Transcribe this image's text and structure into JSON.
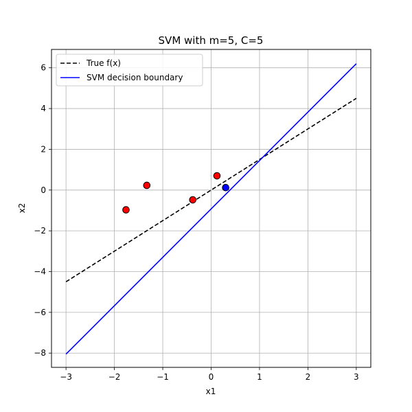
{
  "chart_data": {
    "type": "scatter",
    "title": "SVM with m=5, C=5",
    "xlabel": "x1",
    "ylabel": "x2",
    "xlim": [
      -3.3,
      3.3
    ],
    "ylim": [
      -8.7,
      6.9
    ],
    "xticks": [
      -3,
      -2,
      -1,
      0,
      1,
      2,
      3
    ],
    "yticks": [
      -8,
      -6,
      -4,
      -2,
      0,
      2,
      4,
      6
    ],
    "xtick_labels": [
      "−3",
      "−2",
      "−1",
      "0",
      "1",
      "2",
      "3"
    ],
    "ytick_labels": [
      "−8",
      "−6",
      "−4",
      "−2",
      "0",
      "2",
      "4",
      "6"
    ],
    "grid": true,
    "legend_position": "top-left",
    "lines": [
      {
        "name": "True f(x)",
        "x": [
          -3,
          3
        ],
        "y": [
          -4.5,
          4.5
        ],
        "color": "#000000",
        "style": "dashed"
      },
      {
        "name": "SVM decision boundary",
        "x": [
          -3,
          3
        ],
        "y": [
          -8.05,
          6.2
        ],
        "color": "#0000ff",
        "style": "solid"
      }
    ],
    "points": [
      {
        "x": -1.76,
        "y": -0.97,
        "color": "#ff0000"
      },
      {
        "x": -1.33,
        "y": 0.23,
        "color": "#ff0000"
      },
      {
        "x": -0.38,
        "y": -0.48,
        "color": "#ff0000"
      },
      {
        "x": 0.12,
        "y": 0.7,
        "color": "#ff0000"
      },
      {
        "x": 0.3,
        "y": 0.12,
        "color": "#0000ff"
      }
    ]
  }
}
